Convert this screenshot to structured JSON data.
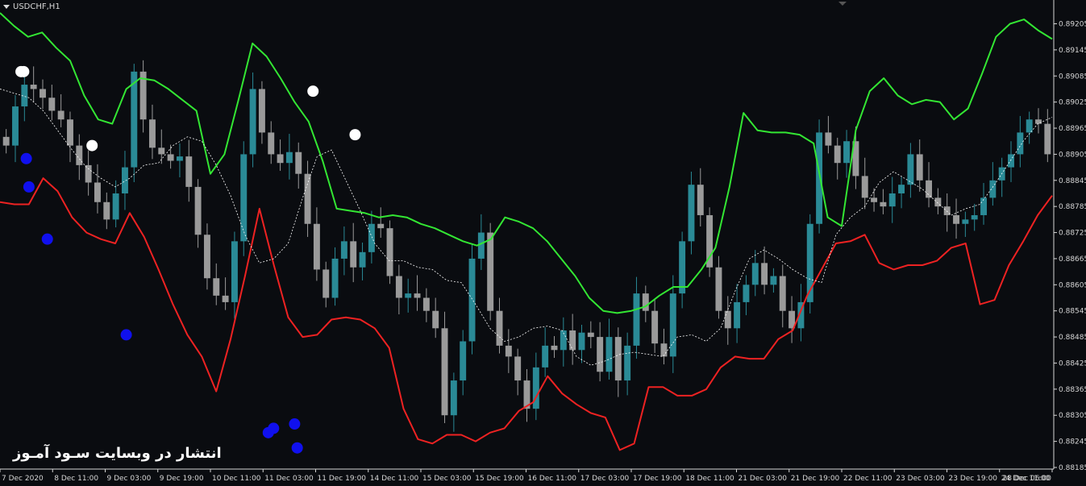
{
  "symbol_label": "USDCHF,H1",
  "watermark": "انتشار در وبسایت سـود آمـوز",
  "colors": {
    "background": "#0a0c10",
    "bull_candle": "#2a8a96",
    "bear_candle": "#9a9a9a",
    "upper_band": "#33e633",
    "lower_band": "#ee2222",
    "mid_line": "#ffffff",
    "sell_signal": "#ffffff",
    "buy_signal": "#1010ee"
  },
  "chart_data": {
    "type": "candlestick",
    "ylim": [
      0.88185,
      0.8923
    ],
    "y_ticks": [
      "0.89205",
      "0.89145",
      "0.89085",
      "0.89025",
      "0.88965",
      "0.88905",
      "0.88845",
      "0.88785",
      "0.88725",
      "0.88665",
      "0.88605",
      "0.88545",
      "0.88485",
      "0.88425",
      "0.88365",
      "0.88305",
      "0.88245",
      "0.88185"
    ],
    "x_ticks": [
      "7 Dec 2020",
      "8 Dec 11:00",
      "9 Dec 03:00",
      "9 Dec 19:00",
      "10 Dec 11:00",
      "11 Dec 03:00",
      "11 Dec 19:00",
      "14 Dec 11:00",
      "15 Dec 03:00",
      "15 Dec 19:00",
      "16 Dec 11:00",
      "17 Dec 03:00",
      "17 Dec 19:00",
      "18 Dec 11:00",
      "21 Dec 03:00",
      "21 Dec 19:00",
      "22 Dec 11:00",
      "23 Dec 03:00",
      "23 Dec 19:00",
      "24 Dec 11:00",
      "28 Dec 06:00"
    ],
    "close": [
      0.88925,
      0.89015,
      0.89065,
      0.89055,
      0.89035,
      0.89005,
      0.88985,
      0.88925,
      0.8888,
      0.8884,
      0.88795,
      0.88755,
      0.88815,
      0.88875,
      0.89095,
      0.88985,
      0.8892,
      0.88905,
      0.8889,
      0.889,
      0.8883,
      0.8872,
      0.8862,
      0.8858,
      0.88565,
      0.88705,
      0.88905,
      0.89055,
      0.88955,
      0.88905,
      0.88885,
      0.8891,
      0.8886,
      0.88745,
      0.8864,
      0.88575,
      0.88665,
      0.88705,
      0.88645,
      0.8868,
      0.88745,
      0.88735,
      0.88625,
      0.88575,
      0.88585,
      0.88575,
      0.88545,
      0.88505,
      0.88305,
      0.88385,
      0.88475,
      0.88665,
      0.88725,
      0.88545,
      0.88465,
      0.8844,
      0.88385,
      0.8832,
      0.88415,
      0.88465,
      0.88455,
      0.885,
      0.88455,
      0.88495,
      0.88485,
      0.88405,
      0.88485,
      0.88385,
      0.88465,
      0.88585,
      0.88545,
      0.8847,
      0.8844,
      0.88585,
      0.88705,
      0.88835,
      0.88765,
      0.88645,
      0.88545,
      0.88505,
      0.88565,
      0.88605,
      0.88655,
      0.88605,
      0.88625,
      0.88545,
      0.88505,
      0.88565,
      0.88745,
      0.88955,
      0.88925,
      0.88885,
      0.88935,
      0.88855,
      0.88805,
      0.88795,
      0.88785,
      0.88815,
      0.88835,
      0.88905,
      0.88845,
      0.88805,
      0.88785,
      0.88765,
      0.88745,
      0.88755,
      0.88765,
      0.88805,
      0.88845,
      0.88875,
      0.88905,
      0.88955,
      0.88985,
      0.88975,
      0.88905
    ],
    "upper_band": [
      0.8923,
      0.892,
      0.89175,
      0.89185,
      0.8915,
      0.8912,
      0.8904,
      0.88985,
      0.88975,
      0.89055,
      0.8908,
      0.89075,
      0.89055,
      0.8903,
      0.89005,
      0.8886,
      0.88905,
      0.8903,
      0.8916,
      0.8913,
      0.8908,
      0.89025,
      0.8898,
      0.8889,
      0.8878,
      0.88775,
      0.8877,
      0.8876,
      0.88765,
      0.8876,
      0.88745,
      0.88735,
      0.8872,
      0.88705,
      0.88695,
      0.8871,
      0.8876,
      0.8875,
      0.88735,
      0.88705,
      0.88665,
      0.88625,
      0.88575,
      0.88545,
      0.8854,
      0.88545,
      0.88555,
      0.8858,
      0.886,
      0.886,
      0.8864,
      0.8869,
      0.8883,
      0.89,
      0.8896,
      0.88955,
      0.88955,
      0.8895,
      0.8893,
      0.8876,
      0.8874,
      0.8896,
      0.8905,
      0.8908,
      0.8904,
      0.8902,
      0.8903,
      0.89025,
      0.88985,
      0.8901,
      0.8909,
      0.89175,
      0.89205,
      0.89215,
      0.8919,
      0.8917
    ],
    "lower_band": [
      0.88795,
      0.8879,
      0.8879,
      0.8885,
      0.8882,
      0.8876,
      0.88725,
      0.8871,
      0.887,
      0.8877,
      0.88715,
      0.8864,
      0.8856,
      0.8849,
      0.8844,
      0.8836,
      0.8848,
      0.88625,
      0.8878,
      0.8865,
      0.8853,
      0.88485,
      0.8849,
      0.88525,
      0.8853,
      0.88525,
      0.88505,
      0.8846,
      0.8832,
      0.8825,
      0.8824,
      0.8826,
      0.8826,
      0.88245,
      0.88265,
      0.88275,
      0.88315,
      0.88335,
      0.88395,
      0.88355,
      0.8833,
      0.8831,
      0.883,
      0.88225,
      0.8824,
      0.8837,
      0.8837,
      0.8835,
      0.8835,
      0.88365,
      0.88415,
      0.8844,
      0.88435,
      0.88435,
      0.8848,
      0.885,
      0.8858,
      0.8864,
      0.887,
      0.88705,
      0.8872,
      0.88655,
      0.8864,
      0.8865,
      0.8865,
      0.8866,
      0.8869,
      0.887,
      0.8856,
      0.8857,
      0.8865,
      0.88705,
      0.88765,
      0.8881
    ],
    "mid_line": [
      0.89055,
      0.89045,
      0.89035,
      0.89005,
      0.8896,
      0.88915,
      0.88875,
      0.8885,
      0.8883,
      0.8885,
      0.8888,
      0.88885,
      0.88925,
      0.88945,
      0.88935,
      0.8888,
      0.8881,
      0.8872,
      0.88655,
      0.88665,
      0.887,
      0.88805,
      0.889,
      0.88915,
      0.88845,
      0.88775,
      0.887,
      0.8866,
      0.8866,
      0.88645,
      0.8864,
      0.88615,
      0.8861,
      0.8856,
      0.88505,
      0.88475,
      0.88485,
      0.88505,
      0.8851,
      0.885,
      0.8844,
      0.8842,
      0.8843,
      0.88445,
      0.8845,
      0.88445,
      0.8844,
      0.88485,
      0.8849,
      0.88475,
      0.88505,
      0.8859,
      0.88665,
      0.88685,
      0.88665,
      0.8864,
      0.8862,
      0.8861,
      0.8872,
      0.8876,
      0.88785,
      0.8884,
      0.88865,
      0.88845,
      0.88825,
      0.88795,
      0.88765,
      0.8878,
      0.8879,
      0.88835,
      0.88885,
      0.88935,
      0.88975,
      0.8899
    ],
    "sell_signals": [
      [
        0.4,
        0.89095
      ],
      [
        0.45,
        0.89095
      ],
      [
        1.75,
        0.88925
      ],
      [
        5.95,
        0.8905
      ],
      [
        6.75,
        0.8895
      ]
    ],
    "buy_signals": [
      [
        0.5,
        0.88895
      ],
      [
        0.55,
        0.8883
      ],
      [
        0.9,
        0.8871
      ],
      [
        2.4,
        0.8849
      ],
      [
        5.1,
        0.88265
      ],
      [
        5.2,
        0.88275
      ],
      [
        5.6,
        0.88285
      ],
      [
        5.65,
        0.8823
      ]
    ]
  }
}
